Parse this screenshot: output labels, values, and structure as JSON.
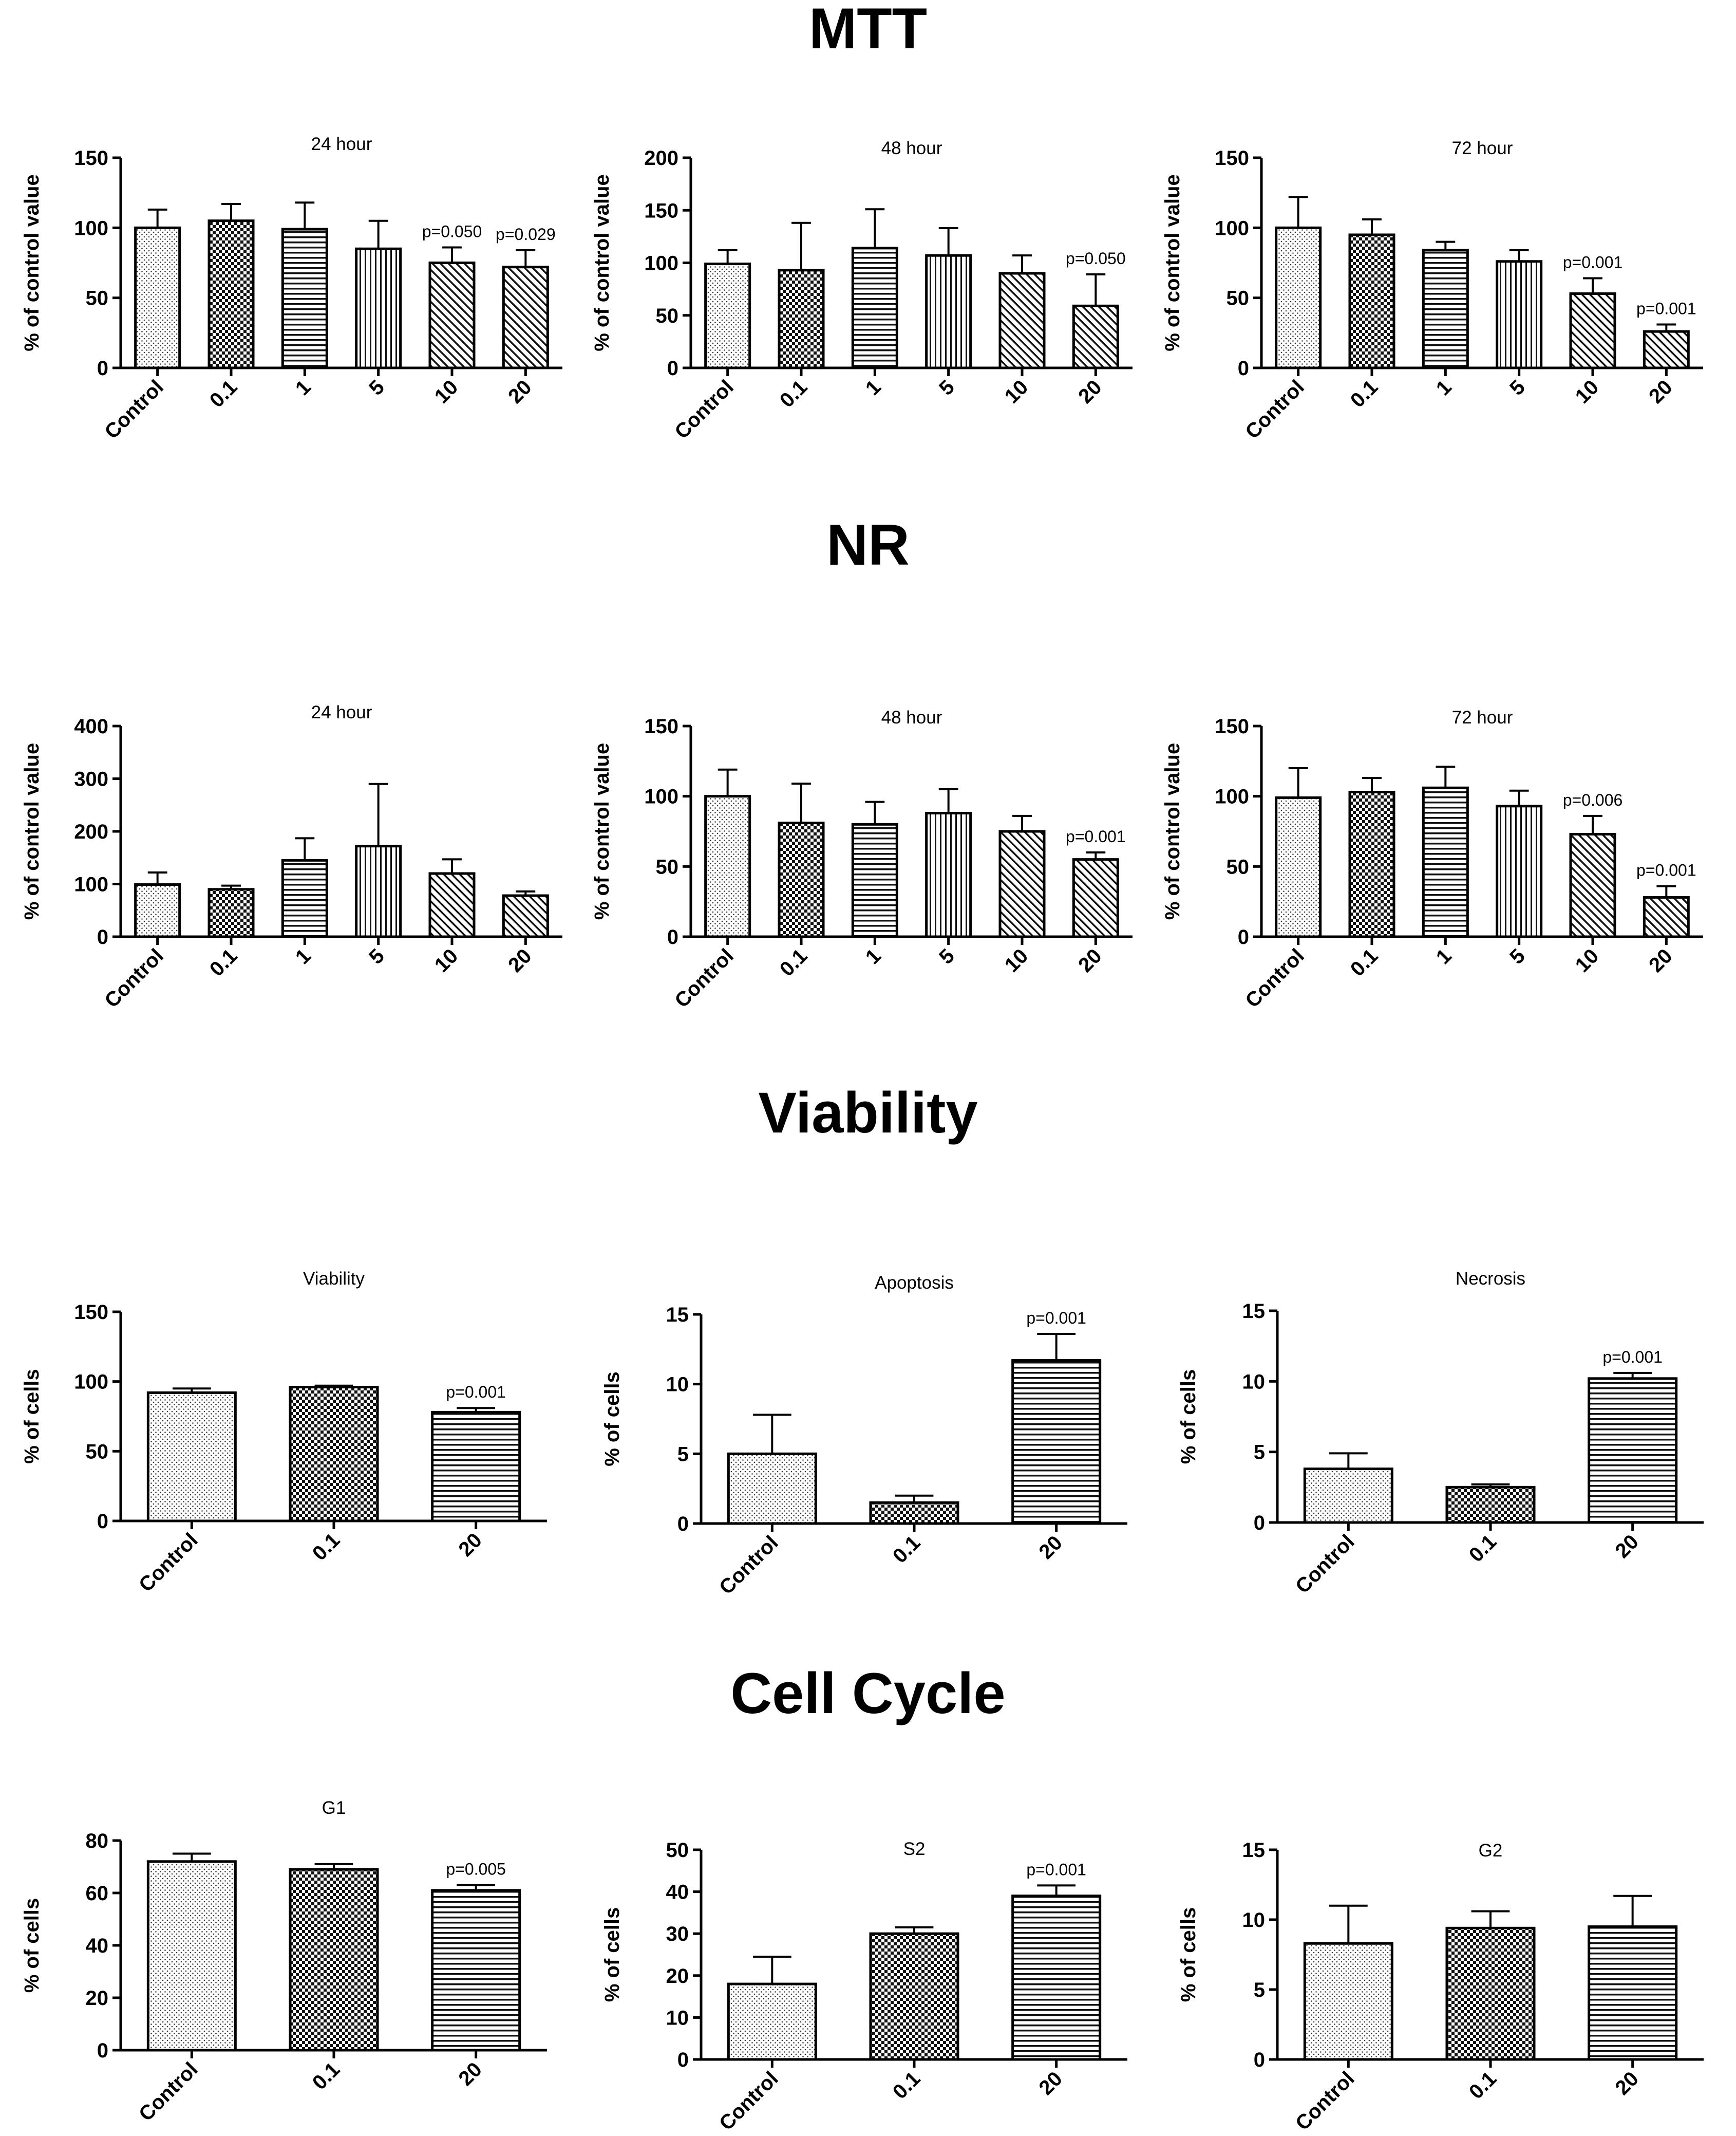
{
  "sections": {
    "mtt": "MTT",
    "nr": "NR",
    "viability": "Viability",
    "cell_cycle": "Cell Cycle"
  },
  "colors": {
    "ink": "#000000",
    "fill": "#ffffff"
  },
  "chart_data": [
    {
      "id": "mtt-24",
      "type": "bar",
      "title": "24 hour",
      "ylabel": "% of control value",
      "ylim": [
        0,
        150
      ],
      "yticks": [
        0,
        50,
        100,
        150
      ],
      "categories": [
        "Control",
        "0.1",
        "1",
        "5",
        "10",
        "20"
      ],
      "values": [
        100,
        105,
        99,
        85,
        75,
        72
      ],
      "errors": [
        13,
        12,
        19,
        20,
        11,
        12
      ],
      "patterns": [
        "dots",
        "checker",
        "hlines",
        "vlines",
        "diag",
        "diag"
      ],
      "annotations": [
        "",
        "",
        "",
        "",
        "p=0.050",
        "p=0.029"
      ]
    },
    {
      "id": "mtt-48",
      "type": "bar",
      "title": "48 hour",
      "ylabel": "% of control value",
      "ylim": [
        0,
        200
      ],
      "yticks": [
        0,
        50,
        100,
        150,
        200
      ],
      "categories": [
        "Control",
        "0.1",
        "1",
        "5",
        "10",
        "20"
      ],
      "values": [
        99,
        93,
        114,
        107,
        90,
        59
      ],
      "errors": [
        13,
        45,
        37,
        26,
        17,
        30
      ],
      "patterns": [
        "dots",
        "checker",
        "hlines",
        "vlines",
        "diag",
        "diag"
      ],
      "annotations": [
        "",
        "",
        "",
        "",
        "",
        "p=0.050"
      ]
    },
    {
      "id": "mtt-72",
      "type": "bar",
      "title": "72 hour",
      "ylabel": "% of control value",
      "ylim": [
        0,
        150
      ],
      "yticks": [
        0,
        50,
        100,
        150
      ],
      "categories": [
        "Control",
        "0.1",
        "1",
        "5",
        "10",
        "20"
      ],
      "values": [
        100,
        95,
        84,
        76,
        53,
        26
      ],
      "errors": [
        22,
        11,
        6,
        8,
        11,
        5
      ],
      "patterns": [
        "dots",
        "checker",
        "hlines",
        "vlines",
        "diag",
        "diag"
      ],
      "annotations": [
        "",
        "",
        "",
        "",
        "p=0.001",
        "p=0.001"
      ]
    },
    {
      "id": "nr-24",
      "type": "bar",
      "title": "24 hour",
      "ylabel": "% of control value",
      "ylim": [
        0,
        400
      ],
      "yticks": [
        0,
        100,
        200,
        300,
        400
      ],
      "categories": [
        "Control",
        "0.1",
        "1",
        "5",
        "10",
        "20"
      ],
      "values": [
        99,
        90,
        145,
        172,
        120,
        78
      ],
      "errors": [
        23,
        7,
        42,
        118,
        27,
        8
      ],
      "patterns": [
        "dots",
        "checker",
        "hlines",
        "vlines",
        "diag",
        "diag"
      ],
      "annotations": [
        "",
        "",
        "",
        "",
        "",
        ""
      ]
    },
    {
      "id": "nr-48",
      "type": "bar",
      "title": "48 hour",
      "ylabel": "% of control value",
      "ylim": [
        0,
        150
      ],
      "yticks": [
        0,
        50,
        100,
        150
      ],
      "categories": [
        "Control",
        "0.1",
        "1",
        "5",
        "10",
        "20"
      ],
      "values": [
        100,
        81,
        80,
        88,
        75,
        55
      ],
      "errors": [
        19,
        28,
        16,
        17,
        11,
        5
      ],
      "patterns": [
        "dots",
        "checker",
        "hlines",
        "vlines",
        "diag",
        "diag"
      ],
      "annotations": [
        "",
        "",
        "",
        "",
        "",
        "p=0.001"
      ]
    },
    {
      "id": "nr-72",
      "type": "bar",
      "title": "72 hour",
      "ylabel": "% of control value",
      "ylim": [
        0,
        150
      ],
      "yticks": [
        0,
        50,
        100,
        150
      ],
      "categories": [
        "Control",
        "0.1",
        "1",
        "5",
        "10",
        "20"
      ],
      "values": [
        99,
        103,
        106,
        93,
        73,
        28
      ],
      "errors": [
        21,
        10,
        15,
        11,
        13,
        8
      ],
      "patterns": [
        "dots",
        "checker",
        "hlines",
        "vlines",
        "diag",
        "diag"
      ],
      "annotations": [
        "",
        "",
        "",
        "",
        "p=0.006",
        "p=0.001"
      ]
    },
    {
      "id": "via-viability",
      "type": "bar",
      "title": "Viability",
      "ylabel": "% of cells",
      "ylim": [
        0,
        150
      ],
      "yticks": [
        0,
        50,
        100,
        150
      ],
      "categories": [
        "Control",
        "0.1",
        "20"
      ],
      "values": [
        92,
        96,
        78
      ],
      "errors": [
        3,
        1,
        3
      ],
      "patterns": [
        "dots",
        "checker",
        "hlines"
      ],
      "annotations": [
        "",
        "",
        "p=0.001"
      ]
    },
    {
      "id": "via-apoptosis",
      "type": "bar",
      "title": "Apoptosis",
      "ylabel": "% of cells",
      "ylim": [
        0,
        15
      ],
      "yticks": [
        0,
        5,
        10,
        15
      ],
      "categories": [
        "Control",
        "0.1",
        "20"
      ],
      "values": [
        5.0,
        1.5,
        11.7
      ],
      "errors": [
        2.8,
        0.5,
        1.9
      ],
      "patterns": [
        "dots",
        "checker",
        "hlines"
      ],
      "annotations": [
        "",
        "",
        "p=0.001"
      ]
    },
    {
      "id": "via-necrosis",
      "type": "bar",
      "title": "Necrosis",
      "ylabel": "% of cells",
      "ylim": [
        0,
        15
      ],
      "yticks": [
        0,
        5,
        10,
        15
      ],
      "categories": [
        "Control",
        "0.1",
        "20"
      ],
      "values": [
        3.8,
        2.5,
        10.2
      ],
      "errors": [
        1.1,
        0.2,
        0.4
      ],
      "patterns": [
        "dots",
        "checker",
        "hlines"
      ],
      "annotations": [
        "",
        "",
        "p=0.001"
      ]
    },
    {
      "id": "cc-g1",
      "type": "bar",
      "title": "G1",
      "ylabel": "% of cells",
      "ylim": [
        0,
        80
      ],
      "yticks": [
        0,
        20,
        40,
        60,
        80
      ],
      "categories": [
        "Control",
        "0.1",
        "20"
      ],
      "values": [
        72,
        69,
        61
      ],
      "errors": [
        3,
        2,
        2
      ],
      "patterns": [
        "dots",
        "checker",
        "hlines"
      ],
      "annotations": [
        "",
        "",
        "p=0.005"
      ]
    },
    {
      "id": "cc-s2",
      "type": "bar",
      "title": "S2",
      "ylabel": "% of cells",
      "ylim": [
        0,
        50
      ],
      "yticks": [
        0,
        10,
        20,
        30,
        40,
        50
      ],
      "categories": [
        "Control",
        "0.1",
        "20"
      ],
      "values": [
        18,
        30,
        39
      ],
      "errors": [
        6.5,
        1.5,
        2.5
      ],
      "patterns": [
        "dots",
        "checker",
        "hlines"
      ],
      "annotations": [
        "",
        "",
        "p=0.001"
      ]
    },
    {
      "id": "cc-g2",
      "type": "bar",
      "title": "G2",
      "ylabel": "% of cells",
      "ylim": [
        0,
        15
      ],
      "yticks": [
        0,
        5,
        10,
        15
      ],
      "categories": [
        "Control",
        "0.1",
        "20"
      ],
      "values": [
        8.3,
        9.4,
        9.5
      ],
      "errors": [
        2.7,
        1.2,
        2.2
      ],
      "patterns": [
        "dots",
        "checker",
        "hlines"
      ],
      "annotations": [
        "",
        "",
        ""
      ]
    }
  ]
}
